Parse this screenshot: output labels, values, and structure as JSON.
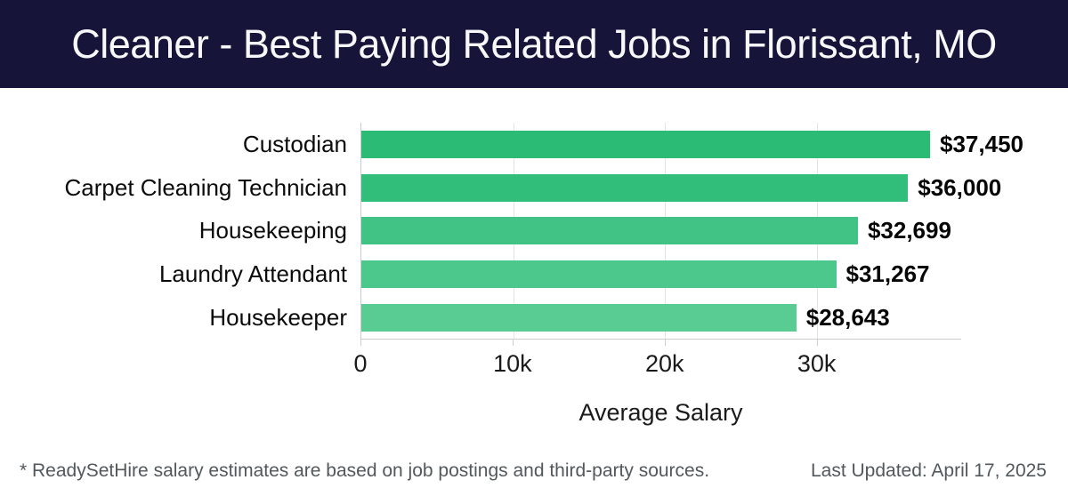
{
  "header": {
    "title": "Cleaner - Best Paying Related Jobs in Florissant, MO",
    "background_color": "#161539",
    "text_color": "#f8f8fa"
  },
  "chart_data": {
    "type": "bar",
    "orientation": "horizontal",
    "categories": [
      "Custodian",
      "Carpet Cleaning Technician",
      "Housekeeping",
      "Laundry Attendant",
      "Housekeeper"
    ],
    "values": [
      37450,
      36000,
      32699,
      31267,
      28643
    ],
    "value_labels": [
      "$37,450",
      "$36,000",
      "$32,699",
      "$31,267",
      "$28,643"
    ],
    "bar_colors": [
      "#2bbb74",
      "#31bd7a",
      "#41c385",
      "#4cc88c",
      "#58cc93"
    ],
    "xlabel": "Average Salary",
    "ylabel": "",
    "xlim": [
      0,
      39500
    ],
    "x_ticks": [
      {
        "value": 0,
        "label": "0"
      },
      {
        "value": 10000,
        "label": "10k"
      },
      {
        "value": 20000,
        "label": "20k"
      },
      {
        "value": 30000,
        "label": "30k"
      }
    ],
    "gridlines": [
      10000,
      20000,
      30000
    ],
    "grid": "vertical",
    "legend": "none"
  },
  "footer": {
    "disclaimer": "* ReadySetHire salary estimates are based on job postings and third-party sources.",
    "last_updated": "Last Updated: April 17, 2025"
  }
}
